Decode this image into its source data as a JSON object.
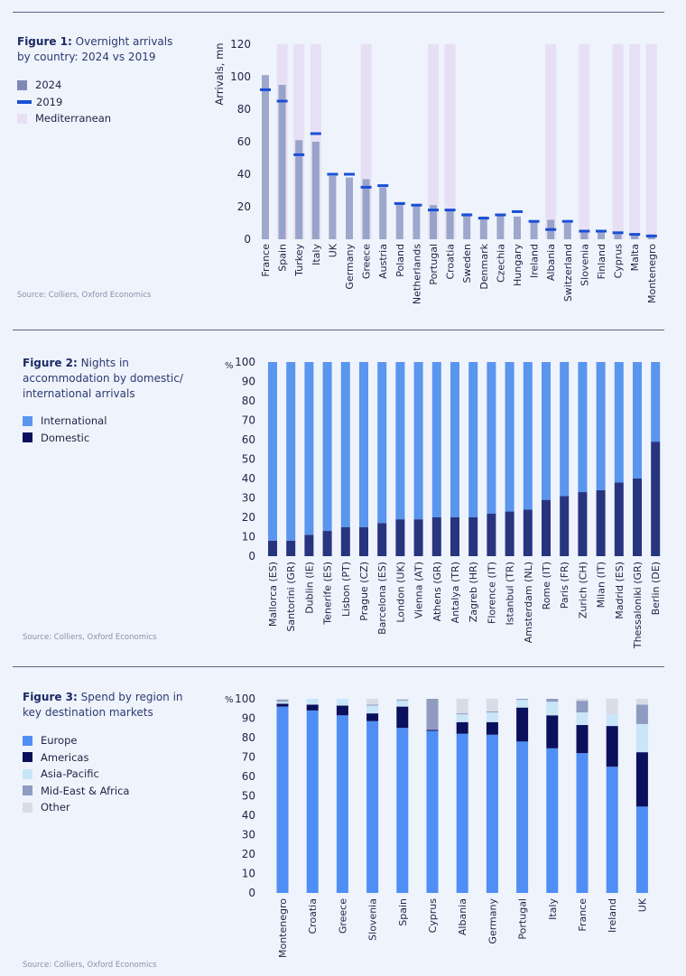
{
  "colors": {
    "bar2024": "#959fc6",
    "marker2019": "#1a4fd6",
    "mediterranean": "#e7e0f4",
    "international": "#5a95ee",
    "domestic": "#27357f",
    "europe": "#4f8ef5",
    "americas": "#0b105c",
    "asia_pacific": "#c9e5f8",
    "mideast_africa": "#8f9bc0",
    "other": "#d9dbe6"
  },
  "figure1": {
    "label": "Figure 1:",
    "title": " Overnight arrivals by country: 2024 vs 2019",
    "legend": [
      "2024",
      "2019",
      "Mediterranean"
    ],
    "source": "Source: Colliers, Oxford Economics"
  },
  "figure2": {
    "label": "Figure 2:",
    "title": " Nights in accommodation by domestic/ international arrivals",
    "legend": [
      "International",
      "Domestic"
    ],
    "source": "Source: Colliers, Oxford Economics"
  },
  "figure3": {
    "label": "Figure 3:",
    "title": " Spend by region in key destination markets",
    "legend": [
      "Europe",
      "Americas",
      "Asia-Pacific",
      "Mid-East & Africa",
      "Other"
    ],
    "source": "Source: Colliers, Oxford Economics"
  },
  "chart_data": [
    {
      "type": "bar",
      "title": "Overnight arrivals by country: 2024 vs 2019",
      "ylabel": "Arrivals, mn",
      "ylim": [
        0,
        120
      ],
      "yticks": [
        0,
        20,
        40,
        60,
        80,
        100,
        120
      ],
      "categories": [
        "France",
        "Spain",
        "Turkey",
        "Italy",
        "UK",
        "Germany",
        "Greece",
        "Austria",
        "Poland",
        "Netherlands",
        "Portugal",
        "Croatia",
        "Sweden",
        "Denmark",
        "Czechia",
        "Hungary",
        "Ireland",
        "Albania",
        "Switzerland",
        "Slovenia",
        "Finland",
        "Cyprus",
        "Malta",
        "Montenegro"
      ],
      "series": [
        {
          "name": "2024",
          "values": [
            101,
            95,
            61,
            60,
            39,
            38,
            37,
            32,
            22,
            21,
            21,
            18,
            16,
            14,
            15,
            14,
            11,
            12,
            10,
            5,
            5,
            4,
            3,
            3
          ]
        },
        {
          "name": "2019",
          "values": [
            92,
            85,
            52,
            65,
            40,
            40,
            32,
            33,
            22,
            21,
            18,
            18,
            15,
            13,
            15,
            17,
            11,
            6,
            11,
            5,
            5,
            4,
            3,
            2
          ]
        }
      ],
      "mediterranean": [
        false,
        true,
        true,
        true,
        false,
        false,
        true,
        false,
        false,
        false,
        true,
        true,
        false,
        false,
        false,
        false,
        false,
        true,
        false,
        true,
        false,
        true,
        true,
        true
      ]
    },
    {
      "type": "bar",
      "stacked": true,
      "title": "Nights in accommodation by domestic/international arrivals",
      "ylabel": "%",
      "ylim": [
        0,
        100
      ],
      "yticks": [
        0,
        10,
        20,
        30,
        40,
        50,
        60,
        70,
        80,
        90,
        100
      ],
      "categories": [
        "Mallorca (ES)",
        "Santorini (GR)",
        "Dublin (IE)",
        "Tenerife (ES)",
        "Lisbon (PT)",
        "Prague (CZ)",
        "Barcelona (ES)",
        "London (UK)",
        "Vienna (AT)",
        "Athens (GR)",
        "Antalya (TR)",
        "Zagreb (HR)",
        "Florence (IT)",
        "Istanbul (TR)",
        "Amsterdam (NL)",
        "Rome (IT)",
        "Paris (FR)",
        "Zurich (CH)",
        "Milan (IT)",
        "Madrid (ES)",
        "Thessaloniki (GR)",
        "Berlin (DE)"
      ],
      "series": [
        {
          "name": "Domestic",
          "values": [
            8,
            8,
            11,
            13,
            15,
            15,
            17,
            19,
            19,
            20,
            20,
            20,
            22,
            23,
            24,
            29,
            31,
            33,
            34,
            38,
            40,
            59
          ]
        },
        {
          "name": "International",
          "values": [
            92,
            92,
            89,
            87,
            85,
            85,
            83,
            81,
            81,
            80,
            80,
            80,
            78,
            77,
            76,
            71,
            69,
            67,
            66,
            62,
            60,
            41
          ]
        }
      ]
    },
    {
      "type": "bar",
      "stacked": true,
      "title": "Spend by region in key destination markets",
      "ylabel": "%",
      "ylim": [
        0,
        100
      ],
      "yticks": [
        0,
        10,
        20,
        30,
        40,
        50,
        60,
        70,
        80,
        90,
        100
      ],
      "categories": [
        "Montenegro",
        "Croatia",
        "Greece",
        "Slovenia",
        "Spain",
        "Cyprus",
        "Albania",
        "Germany",
        "Portugal",
        "Italy",
        "France",
        "Ireland",
        "UK"
      ],
      "series": [
        {
          "name": "Europe",
          "values": [
            96,
            94,
            91.5,
            88.5,
            85,
            83.5,
            82,
            81.5,
            78,
            74.5,
            72,
            65,
            44.5
          ]
        },
        {
          "name": "Americas",
          "values": [
            1.5,
            3,
            5,
            4,
            11,
            0.5,
            6,
            6.5,
            17.5,
            17,
            14.5,
            21,
            28
          ]
        },
        {
          "name": "Asia-Pacific",
          "values": [
            1,
            3,
            3.5,
            4,
            3,
            0,
            4,
            5,
            4,
            7,
            6.5,
            6,
            14.5
          ]
        },
        {
          "name": "Mid-East & Africa",
          "values": [
            1,
            0,
            0,
            0.5,
            0.5,
            16,
            0.5,
            0.5,
            0.5,
            1.5,
            6,
            0,
            10
          ]
        },
        {
          "name": "Other",
          "values": [
            0.5,
            0,
            0,
            3,
            0.5,
            0,
            7.5,
            6.5,
            0,
            0,
            1,
            8,
            3
          ]
        }
      ]
    }
  ]
}
